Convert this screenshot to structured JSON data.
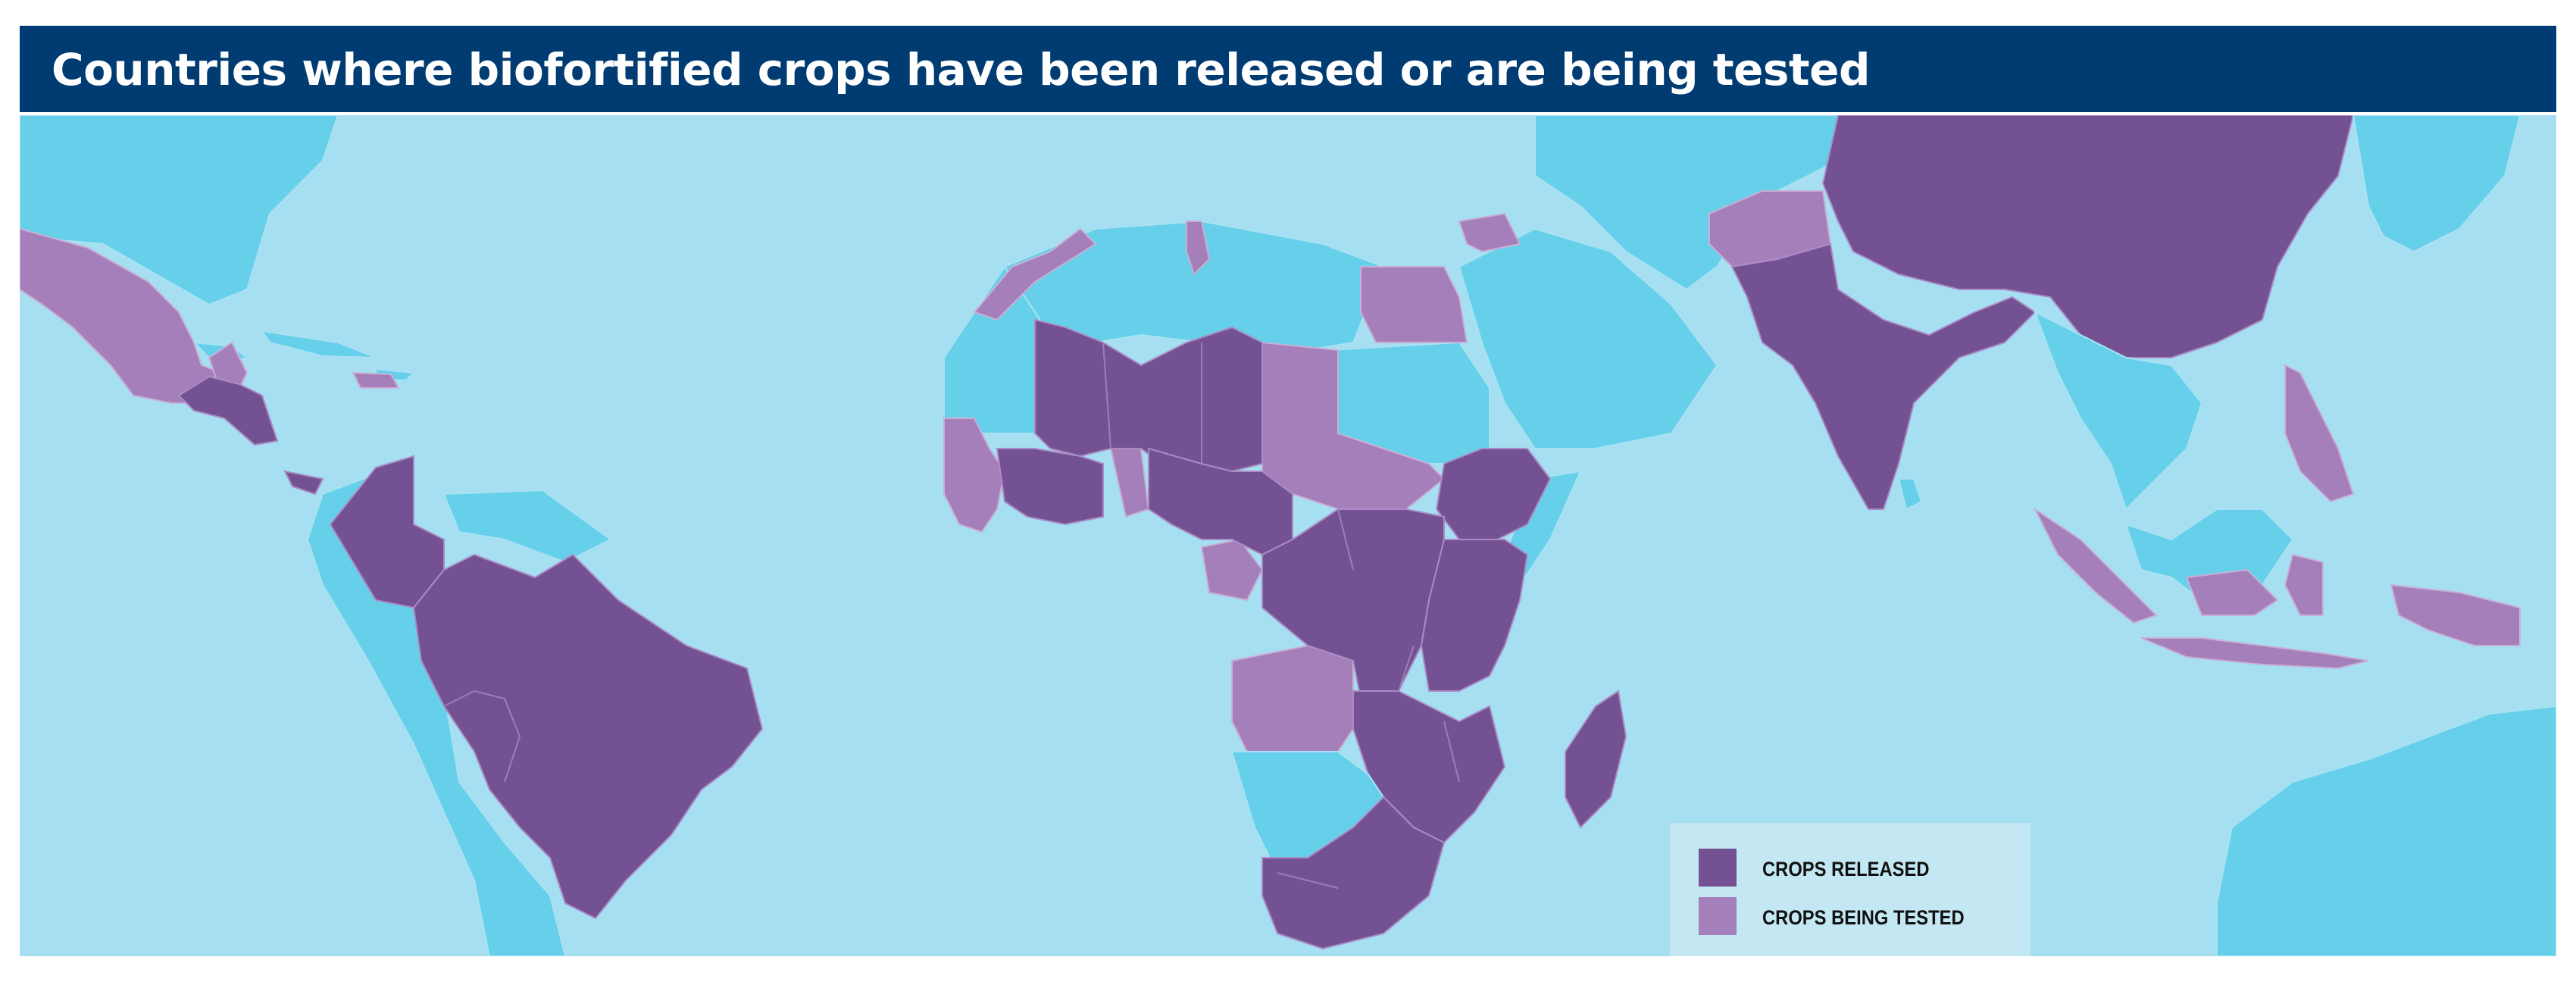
{
  "title": "Countries where biofortified crops have been released or are being tested",
  "colors": {
    "title_bar": "#003b71",
    "ocean": "#a6dff1",
    "other_land": "#66cfea",
    "crops_released": "#745193",
    "crops_being_tested": "#a57fb9",
    "legend_background": "#c4e7f4"
  },
  "legend": {
    "items": [
      {
        "label": "CROPS RELEASED",
        "color": "#745193"
      },
      {
        "label": "CROPS BEING TESTED",
        "color": "#a57fb9"
      }
    ]
  }
}
